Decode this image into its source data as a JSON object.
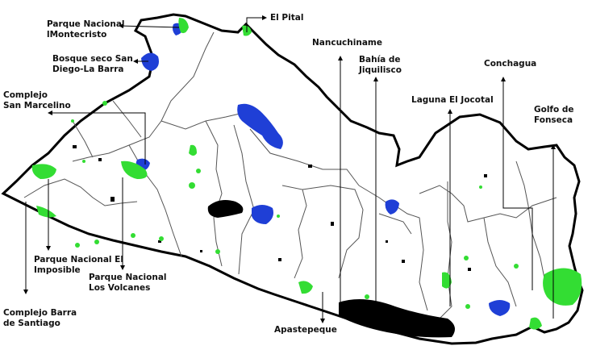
{
  "map": {
    "colors": {
      "land": "#ffffff",
      "outline": "#000000",
      "boundary": "#555555",
      "water": "#1f3fd6",
      "forest": "#33dd33",
      "leader": "#000000"
    },
    "labels": {
      "montecristo": [
        "Parque Nacional",
        "lMontecristo"
      ],
      "el_pital": [
        "El Pital"
      ],
      "bosque_seco": [
        "Bosque seco San",
        "Diego-La Barra"
      ],
      "san_marcelino": [
        "Complejo",
        "San Marcelino"
      ],
      "nancuchiname": [
        "Nancuchiname"
      ],
      "jiquilisco": [
        "Bahía de",
        "Jiquilisco"
      ],
      "conchagua": [
        "Conchagua"
      ],
      "jocotal": [
        "Laguna  El Jocotal"
      ],
      "fonseca": [
        "Golfo de",
        "Fonseca"
      ],
      "el_imposible": [
        "Parque Nacional El",
        "Imposible"
      ],
      "los_volcanes": [
        "Parque Nacional",
        "Los Volcanes"
      ],
      "barra_santiago": [
        "Complejo Barra",
        "de Santiago"
      ],
      "apastepeque": [
        "Apastepeque"
      ]
    }
  }
}
